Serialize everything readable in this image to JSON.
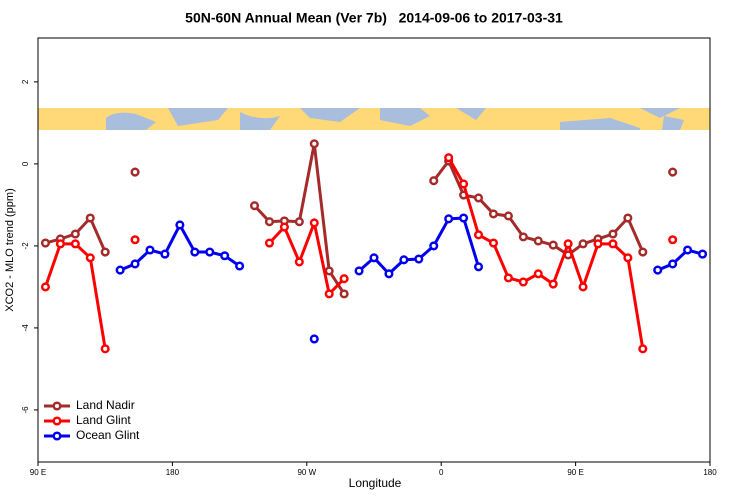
{
  "chart_data": {
    "type": "line",
    "title": "50N-60N Annual Mean (Ver 7b)   2014-09-06 to 2017-03-31",
    "xlabel": "Longitude",
    "ylabel": "XCO2 - MLO trend (ppm)",
    "x": [
      95,
      105,
      115,
      125,
      135,
      145,
      155,
      165,
      175,
      185,
      195,
      205,
      215,
      225,
      235,
      245,
      255,
      265,
      275,
      285,
      295,
      305,
      315,
      325,
      335,
      345,
      355,
      365,
      375,
      385,
      395,
      405,
      415,
      425,
      435,
      445,
      455,
      465,
      475,
      485,
      495,
      505,
      515,
      525,
      535
    ],
    "series": [
      {
        "name": "Land Nadir",
        "color": "#a52a2a",
        "values": [
          -1.93,
          -1.83,
          -1.71,
          -1.32,
          -2.15,
          null,
          -0.2,
          null,
          null,
          null,
          null,
          null,
          null,
          null,
          -1.02,
          -1.41,
          -1.39,
          -1.41,
          0.49,
          -2.61,
          -3.17,
          null,
          null,
          null,
          null,
          null,
          -0.41,
          0.07,
          -0.76,
          -0.83,
          -1.22,
          -1.27,
          -1.78,
          -1.88,
          -1.98,
          -2.22,
          -1.95,
          -1.83,
          -1.71,
          -1.32,
          -2.15,
          null,
          -0.2,
          null,
          null
        ]
      },
      {
        "name": "Land Glint",
        "color": "#ff0000",
        "values": [
          -3.0,
          -1.95,
          -1.95,
          -2.29,
          -4.51,
          null,
          -1.85,
          null,
          null,
          null,
          null,
          null,
          null,
          null,
          null,
          -1.93,
          -1.54,
          -2.39,
          -1.44,
          -3.17,
          -2.8,
          null,
          null,
          null,
          null,
          null,
          null,
          0.15,
          -0.49,
          -1.73,
          -1.93,
          -2.78,
          -2.88,
          -2.68,
          -2.93,
          -1.95,
          -3.0,
          -1.95,
          -1.95,
          -2.29,
          -4.51,
          null,
          -1.85,
          null,
          null
        ]
      },
      {
        "name": "Ocean Glint",
        "color": "#0000ee",
        "values": [
          null,
          null,
          null,
          null,
          null,
          -2.59,
          -2.44,
          -2.1,
          -2.2,
          -1.49,
          -2.15,
          -2.15,
          -2.24,
          -2.49,
          null,
          null,
          null,
          null,
          -4.27,
          null,
          null,
          -2.61,
          -2.29,
          -2.68,
          -2.34,
          -2.32,
          -2.0,
          -1.34,
          -1.32,
          -2.51,
          null,
          null,
          null,
          null,
          null,
          null,
          null,
          null,
          null,
          null,
          null,
          -2.59,
          -2.44,
          -2.1,
          -2.2
        ]
      }
    ],
    "xlim": [
      90,
      540
    ],
    "xticks": [
      {
        "value": 90,
        "label": "90 E"
      },
      180,
      {
        "value": 270,
        "label": "90 W"
      },
      {
        "value": 360,
        "label": "0"
      },
      {
        "value": 450,
        "label": "90 E"
      },
      {
        "value": 540,
        "label": "180"
      }
    ],
    "ylim": [
      -7.27,
      3.07
    ],
    "yticks": [
      2,
      0,
      -2,
      -4,
      -6
    ],
    "legend": "bottom-left"
  }
}
